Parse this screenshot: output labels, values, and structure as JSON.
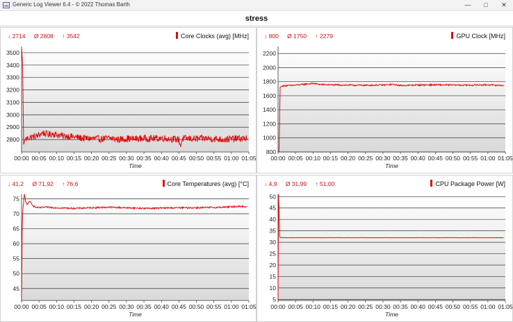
{
  "window": {
    "title": "Generic Log Viewer 6.4 - © 2022 Thomas Barth",
    "minimize_glyph": "—",
    "maximize_glyph": "□",
    "close_glyph": "✕"
  },
  "document": {
    "title": "stress"
  },
  "accent_color": "#dd1010",
  "panels": [
    {
      "stats": {
        "min": "↓ 2714",
        "avg": "Ø 2808",
        "max": "↑ 3542"
      },
      "chart_data": {
        "type": "line",
        "title": "Core Clocks (avg) [MHz]",
        "xlabel": "Time",
        "ylabel": "",
        "xlim": [
          0,
          65
        ],
        "ylim": [
          2700,
          3550
        ],
        "yticks": [
          2800,
          2900,
          3000,
          3100,
          3200,
          3300,
          3400,
          3500
        ],
        "xticks": [
          "00:00",
          "00:05",
          "00:10",
          "00:15",
          "00:20",
          "00:25",
          "00:30",
          "00:35",
          "00:40",
          "00:45",
          "00:50",
          "00:55",
          "01:00",
          "01:05"
        ],
        "grid": true,
        "series": [
          {
            "color": "#dd1010",
            "x": [
              0,
              0.3,
              0.6,
              1,
              2,
              3,
              4,
              5,
              6,
              7,
              8,
              9,
              10,
              11,
              12,
              13,
              14,
              15,
              17,
              20,
              23,
              25,
              28,
              30,
              32,
              35,
              38,
              40,
              43,
              45,
              45.5,
              46,
              48,
              50,
              53,
              55,
              58,
              60,
              62,
              64.5
            ],
            "y": [
              3542,
              3420,
              2760,
              2800,
              2815,
              2820,
              2825,
              2835,
              2855,
              2845,
              2840,
              2850,
              2838,
              2835,
              2825,
              2830,
              2825,
              2822,
              2812,
              2808,
              2805,
              2812,
              2800,
              2808,
              2805,
              2810,
              2808,
              2812,
              2805,
              2800,
              2745,
              2808,
              2808,
              2805,
              2810,
              2805,
              2802,
              2805,
              2808,
              2810
            ]
          }
        ]
      }
    },
    {
      "stats": {
        "min": "↓ 800",
        "avg": "Ø 1750",
        "max": "↑ 2279"
      },
      "chart_data": {
        "type": "line",
        "title": "GPU Clock [MHz]",
        "xlabel": "Time",
        "ylabel": "",
        "xlim": [
          0,
          65
        ],
        "ylim": [
          800,
          2300
        ],
        "yticks": [
          800,
          1000,
          1200,
          1400,
          1600,
          1800,
          2000,
          2200
        ],
        "xticks": [
          "00:00",
          "00:05",
          "00:10",
          "00:15",
          "00:20",
          "00:25",
          "00:30",
          "00:35",
          "00:40",
          "00:45",
          "00:50",
          "00:55",
          "01:00",
          "01:05"
        ],
        "grid": true,
        "series": [
          {
            "color": "#dd1010",
            "x": [
              0,
              0.3,
              0.6,
              1,
              2,
              5,
              8,
              10,
              12,
              15,
              20,
              25,
              30,
              33,
              35,
              40,
              45,
              50,
              55,
              60,
              64.5
            ],
            "y": [
              800,
              810,
              1720,
              1735,
              1742,
              1750,
              1765,
              1775,
              1760,
              1755,
              1750,
              1748,
              1752,
              1760,
              1745,
              1752,
              1755,
              1752,
              1750,
              1755,
              1745
            ]
          }
        ]
      }
    },
    {
      "stats": {
        "min": "↓ 41,2",
        "avg": "Ø 71,92",
        "max": "↑ 76,6"
      },
      "chart_data": {
        "type": "line",
        "title": "Core Temperatures (avg) [°C]",
        "xlabel": "Time",
        "ylabel": "",
        "xlim": [
          0,
          65
        ],
        "ylim": [
          41,
          76.5
        ],
        "yticks": [
          45,
          50,
          55,
          60,
          65,
          70,
          75
        ],
        "xticks": [
          "00:00",
          "00:05",
          "00:10",
          "00:15",
          "00:20",
          "00:25",
          "00:30",
          "00:35",
          "00:40",
          "00:45",
          "00:50",
          "00:55",
          "01:00",
          "01:05"
        ],
        "grid": true,
        "series": [
          {
            "color": "#dd1010",
            "x": [
              0,
              0.2,
              0.4,
              0.6,
              0.8,
              1.2,
              1.6,
              2,
              2.5,
              3,
              3.5,
              4,
              5,
              7,
              10,
              15,
              20,
              25,
              30,
              35,
              40,
              45,
              50,
              55,
              60,
              62,
              64.5
            ],
            "y": [
              41.2,
              66,
              72,
              73.5,
              76.6,
              74,
              73,
              73.8,
              74,
              73.2,
              72.5,
              72.2,
              72,
              72.2,
              72,
              71.8,
              72,
              72.2,
              72,
              71.8,
              71.9,
              72,
              72,
              72.1,
              72.3,
              72.5,
              72.3
            ]
          }
        ]
      }
    },
    {
      "stats": {
        "min": "↓ 4,9",
        "avg": "Ø 31,99",
        "max": "↑ 51,00"
      },
      "chart_data": {
        "type": "line",
        "title": "CPU Package Power [W]",
        "xlabel": "Time",
        "ylabel": "",
        "xlim": [
          0,
          65
        ],
        "ylim": [
          4.5,
          51
        ],
        "yticks": [
          5,
          10,
          15,
          20,
          25,
          30,
          35,
          40,
          45,
          50
        ],
        "xticks": [
          "00:00",
          "00:05",
          "00:10",
          "00:15",
          "00:20",
          "00:25",
          "00:30",
          "00:35",
          "00:40",
          "00:45",
          "00:50",
          "00:55",
          "01:00",
          "01:05"
        ],
        "grid": true,
        "series": [
          {
            "color": "#dd1010",
            "x": [
              0,
              0.15,
              0.3,
              0.45,
              0.8,
              5,
              10,
              20,
              30,
              40,
              50,
              60,
              64.5
            ],
            "y": [
              4.9,
              51,
              45,
              32.5,
              32,
              32,
              32,
              32,
              32,
              32,
              32,
              32,
              32
            ]
          }
        ]
      }
    }
  ]
}
